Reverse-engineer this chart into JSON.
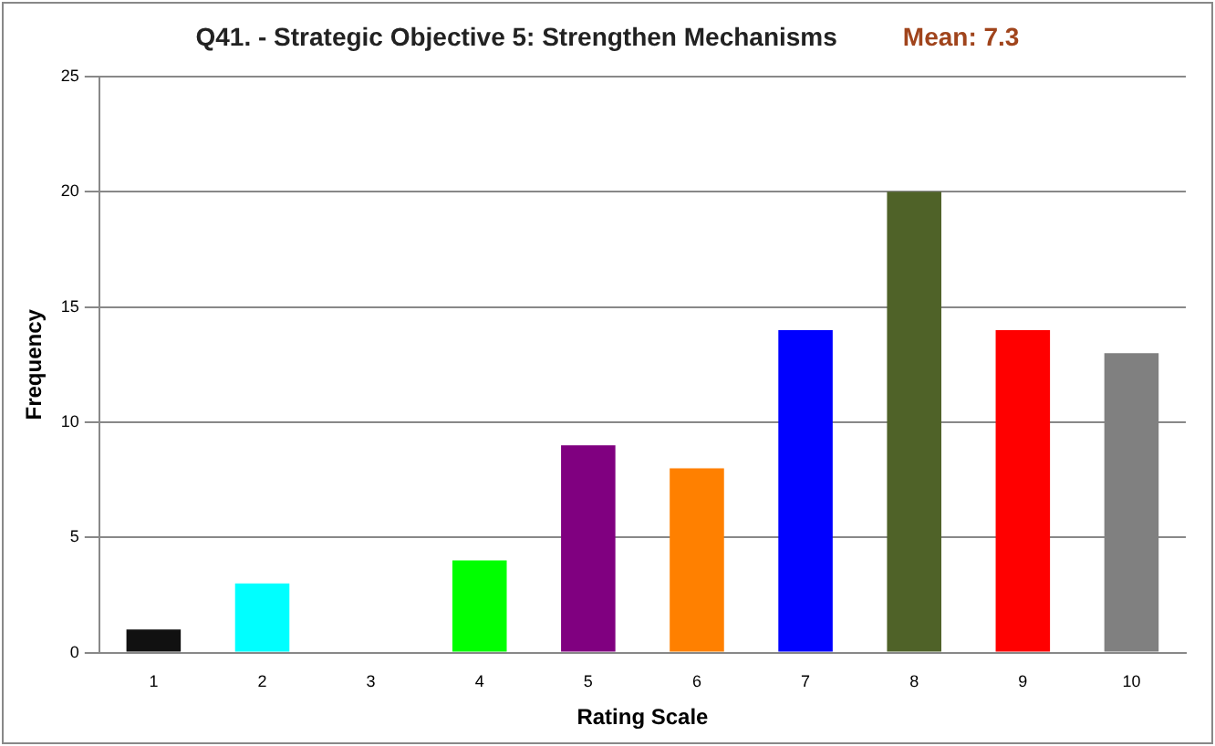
{
  "chart_data": {
    "type": "bar",
    "title": "Q41. - Strategic Objective 5: Strengthen Mechanisms",
    "annotations": [
      "Mean: 7.3"
    ],
    "xlabel": "Rating Scale",
    "ylabel": "Frequency",
    "categories": [
      "1",
      "2",
      "3",
      "4",
      "5",
      "6",
      "7",
      "8",
      "9",
      "10"
    ],
    "values": [
      1,
      3,
      0,
      4,
      9,
      8,
      14,
      20,
      14,
      13
    ],
    "colors": [
      "#111111",
      "#00ffff",
      "#ffffff",
      "#00ff00",
      "#800080",
      "#ff8000",
      "#0000ff",
      "#4f6228",
      "#ff0000",
      "#808080"
    ],
    "ylim": [
      0,
      25
    ],
    "yticks": [
      0,
      5,
      10,
      15,
      20,
      25
    ],
    "grid": "y",
    "legend": false
  }
}
